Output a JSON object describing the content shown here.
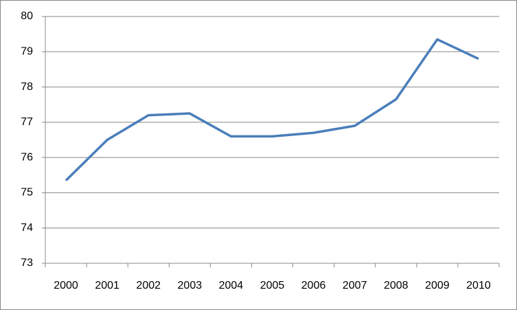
{
  "chart_data": {
    "type": "line",
    "categories": [
      "2000",
      "2001",
      "2002",
      "2003",
      "2004",
      "2005",
      "2006",
      "2007",
      "2008",
      "2009",
      "2010"
    ],
    "values": [
      75.35,
      76.5,
      77.2,
      77.25,
      76.6,
      76.6,
      76.7,
      76.9,
      77.65,
      79.35,
      78.8
    ],
    "color": "#4a7ebb",
    "ylim": [
      73,
      80
    ],
    "yticks": [
      73,
      74,
      75,
      76,
      77,
      78,
      79,
      80
    ],
    "grid": true
  }
}
